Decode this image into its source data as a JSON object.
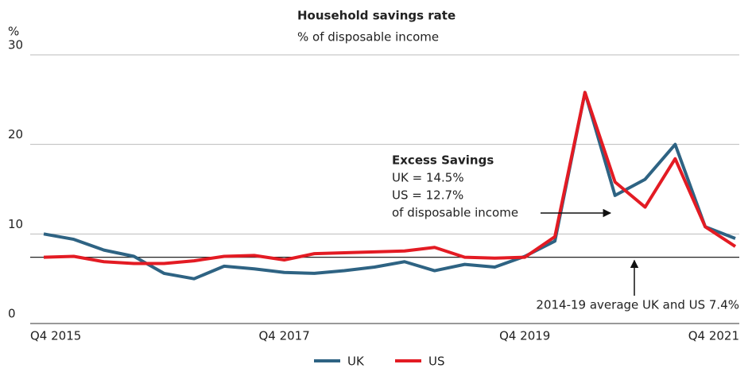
{
  "chart_data": {
    "type": "line",
    "title": "Household savings rate",
    "subtitle": "% of disposable income",
    "y_label": "%",
    "categories": [
      "Q4 2015",
      null,
      null,
      null,
      null,
      null,
      null,
      null,
      "Q4 2017",
      null,
      null,
      null,
      null,
      null,
      null,
      null,
      "Q4 2019",
      null,
      null,
      null,
      null,
      null,
      null,
      "Q4 2021"
    ],
    "series": [
      {
        "name": "UK",
        "color": "#2e6383",
        "values": [
          10.0,
          9.4,
          8.2,
          7.5,
          5.6,
          5.0,
          6.4,
          6.1,
          5.7,
          5.6,
          5.9,
          6.3,
          6.9,
          5.9,
          6.6,
          6.3,
          7.5,
          9.2,
          25.8,
          14.3,
          16.1,
          20.0,
          10.8,
          9.5
        ]
      },
      {
        "name": "US",
        "color": "#e31b23",
        "values": [
          7.4,
          7.5,
          6.9,
          6.7,
          6.7,
          7.0,
          7.5,
          7.6,
          7.1,
          7.8,
          7.9,
          8.0,
          8.1,
          8.5,
          7.4,
          7.3,
          7.4,
          9.7,
          25.8,
          15.8,
          13.0,
          18.4,
          10.8,
          8.6
        ]
      }
    ],
    "ylim": [
      0,
      30
    ],
    "yticks": [
      0,
      10,
      20,
      30
    ],
    "grid": true,
    "reference_line": {
      "value": 7.4,
      "label": "2014-19 average UK and US  7.4%"
    },
    "annotation": {
      "title": "Excess Savings",
      "lines": [
        "UK = 14.5%",
        "US = 12.7%",
        "of disposable income"
      ]
    },
    "legend": "bottom"
  }
}
